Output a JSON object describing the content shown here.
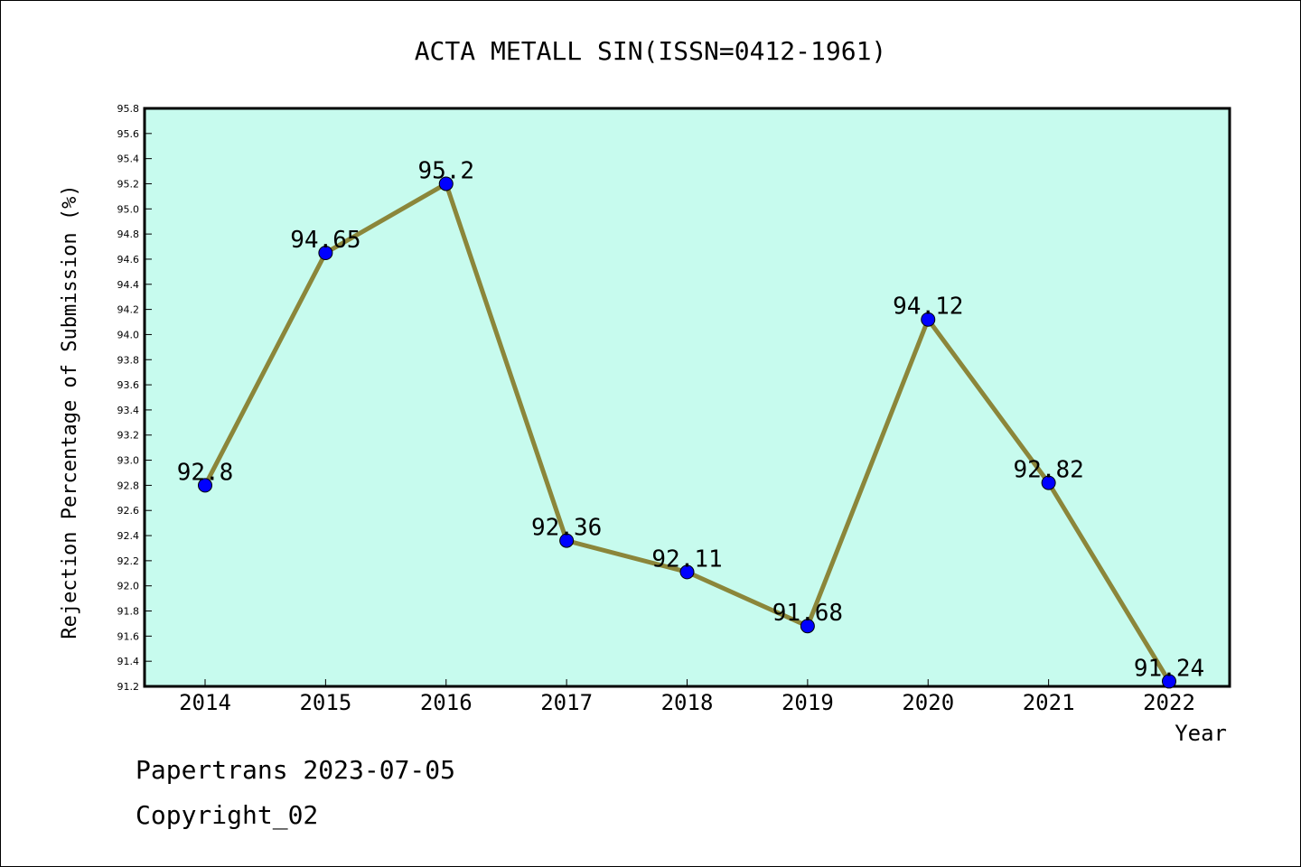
{
  "footer": {
    "line1": "Papertrans 2023-07-05",
    "line2": "Copyright_02"
  },
  "colors": {
    "plot_background": "#c7fbee",
    "line": "#8b863a",
    "marker": "#0000ff"
  },
  "chart_data": {
    "type": "line",
    "title": "ACTA METALL SIN(ISSN=0412-1961)",
    "xlabel": "Year",
    "ylabel": "Rejection Percentage of Submission (%)",
    "categories": [
      "2014",
      "2015",
      "2016",
      "2017",
      "2018",
      "2019",
      "2020",
      "2021",
      "2022"
    ],
    "series": [
      {
        "values": [
          92.8,
          94.65,
          95.2,
          92.36,
          92.11,
          91.68,
          94.12,
          92.82,
          91.24
        ],
        "labels": [
          "92.8",
          "94.65",
          "95.2",
          "92.36",
          "92.11",
          "91.68",
          "94.12",
          "92.82",
          "91.24"
        ]
      }
    ],
    "ylim": [
      91.2,
      95.8
    ],
    "yticks": [
      "91.2",
      "91.4",
      "91.6",
      "91.8",
      "92.0",
      "92.2",
      "92.4",
      "92.6",
      "92.8",
      "93.0",
      "93.2",
      "93.4",
      "93.6",
      "93.8",
      "94.0",
      "94.2",
      "94.4",
      "94.6",
      "94.8",
      "95.0",
      "95.2",
      "95.4",
      "95.6",
      "95.8"
    ],
    "grid": false,
    "legend": "none"
  }
}
